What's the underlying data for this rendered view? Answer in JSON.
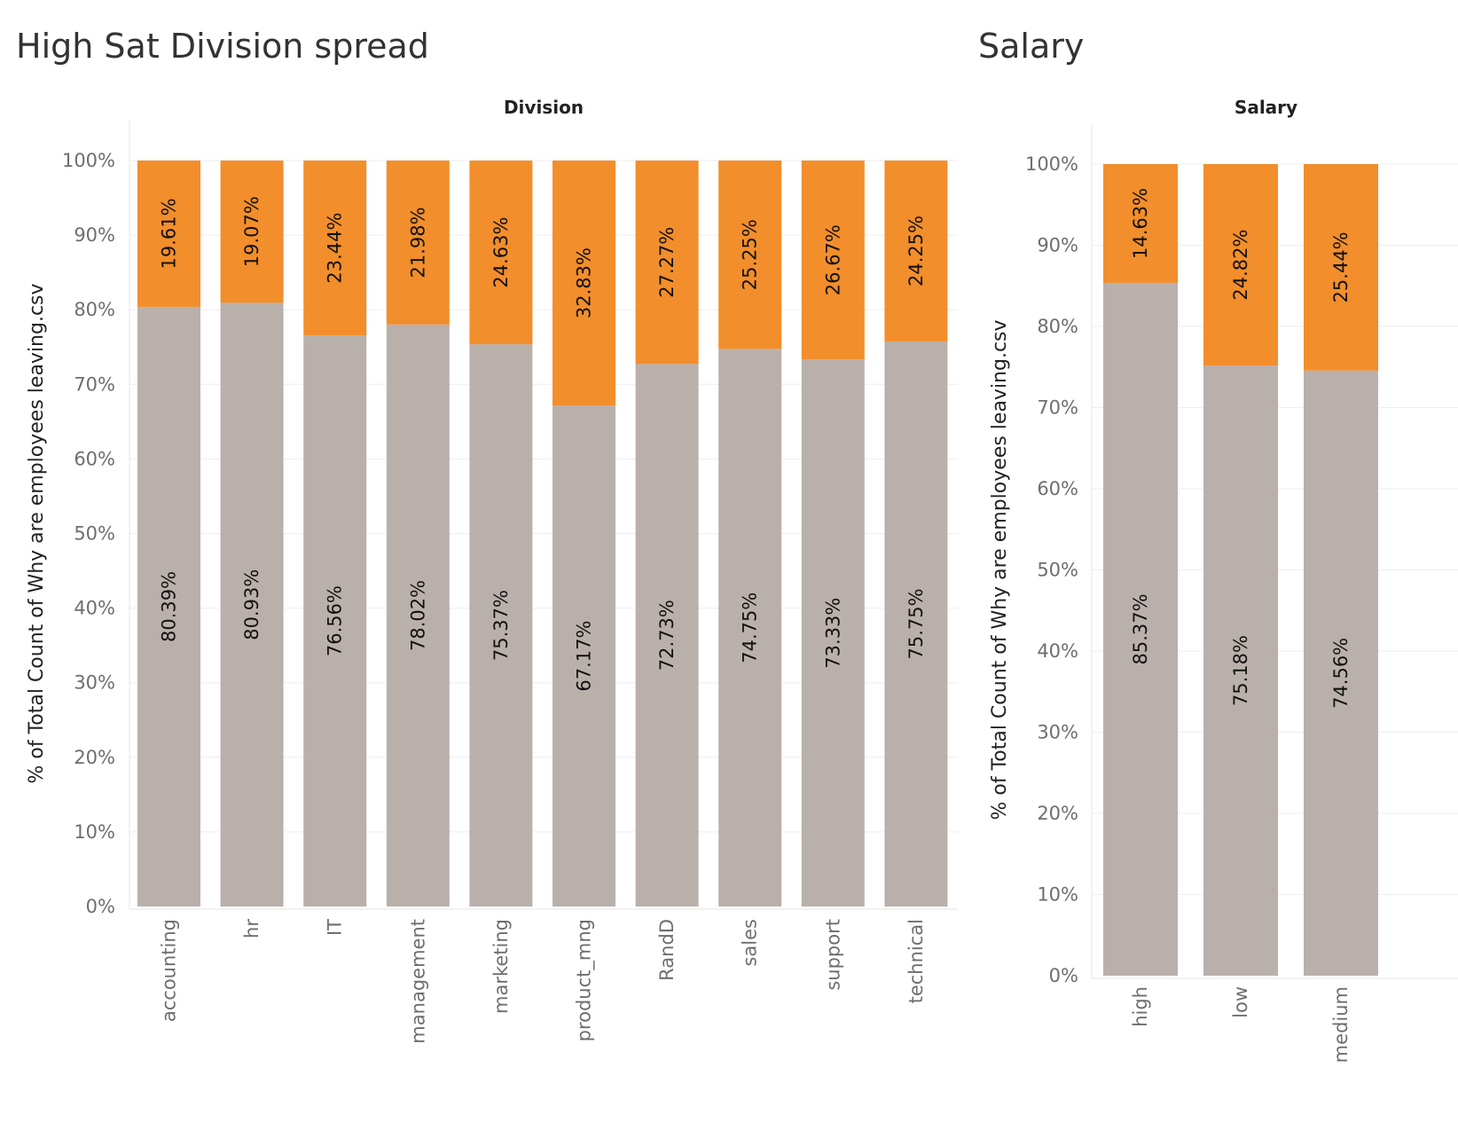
{
  "titles": {
    "left": "High Sat Division spread",
    "right": "Salary"
  },
  "colors": {
    "stay": "#bab0ab",
    "leave": "#f28e2b",
    "grid": "#eeeeee"
  },
  "chart_data": [
    {
      "type": "bar",
      "stacked": true,
      "header": "Division",
      "ylabel": "% of Total Count of Why are employees leaving.csv",
      "ylim": [
        0,
        100
      ],
      "yticks": [
        "0%",
        "10%",
        "20%",
        "30%",
        "40%",
        "50%",
        "60%",
        "70%",
        "80%",
        "90%",
        "100%"
      ],
      "categories": [
        "accounting",
        "hr",
        "IT",
        "management",
        "marketing",
        "product_mng",
        "RandD",
        "sales",
        "support",
        "technical"
      ],
      "series": [
        {
          "values": [
            80.39,
            80.93,
            76.56,
            78.02,
            75.37,
            67.17,
            72.73,
            74.75,
            73.33,
            75.75
          ],
          "labels": [
            "80.39%",
            "80.93%",
            "76.56%",
            "78.02%",
            "75.37%",
            "67.17%",
            "72.73%",
            "74.75%",
            "73.33%",
            "75.75%"
          ]
        },
        {
          "values": [
            19.61,
            19.07,
            23.44,
            21.98,
            24.63,
            32.83,
            27.27,
            25.25,
            26.67,
            24.25
          ],
          "labels": [
            "19.61%",
            "19.07%",
            "23.44%",
            "21.98%",
            "24.63%",
            "32.83%",
            "27.27%",
            "25.25%",
            "26.67%",
            "24.25%"
          ]
        }
      ]
    },
    {
      "type": "bar",
      "stacked": true,
      "header": "Salary",
      "ylabel": "% of Total Count of Why are employees leaving.csv",
      "ylim": [
        0,
        100
      ],
      "yticks": [
        "0%",
        "10%",
        "20%",
        "30%",
        "40%",
        "50%",
        "60%",
        "70%",
        "80%",
        "90%",
        "100%"
      ],
      "categories": [
        "high",
        "low",
        "medium"
      ],
      "series": [
        {
          "values": [
            85.37,
            75.18,
            74.56
          ],
          "labels": [
            "85.37%",
            "75.18%",
            "74.56%"
          ]
        },
        {
          "values": [
            14.63,
            24.82,
            25.44
          ],
          "labels": [
            "14.63%",
            "24.82%",
            "25.44%"
          ]
        }
      ]
    }
  ]
}
